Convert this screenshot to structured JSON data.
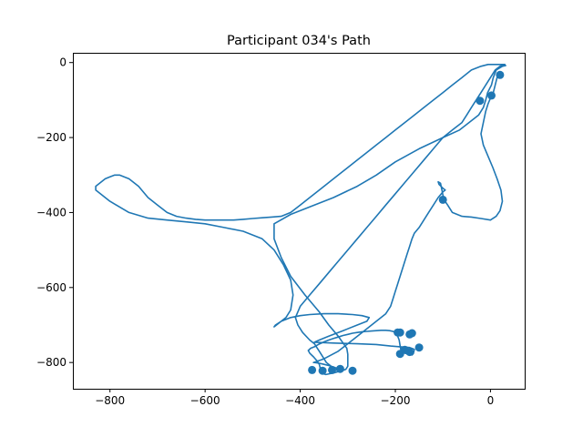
{
  "chart_data": {
    "type": "scatter",
    "title": "Participant 034's Path",
    "xlabel": "",
    "ylabel": "",
    "xlim": [
      -878,
      72
    ],
    "ylim": [
      -870,
      26
    ],
    "grid": false,
    "x_ticks": [
      -800,
      -600,
      -400,
      -200,
      0
    ],
    "y_ticks": [
      0,
      -200,
      -400,
      -600,
      -800
    ],
    "x_tick_labels": [
      "−800",
      "−600",
      "−400",
      "−200",
      "0"
    ],
    "y_tick_labels": [
      "0",
      "−200",
      "−400",
      "−600",
      "−800"
    ],
    "color": "#1f77b4",
    "series": [
      {
        "type": "line",
        "x": [
          32,
          25,
          12,
          6,
          2,
          -6,
          -10,
          -15,
          -25,
          -45,
          -65,
          -100,
          -150,
          -200,
          -240,
          -280,
          -330,
          -380,
          -420,
          -455,
          -455,
          -440,
          -420,
          -390,
          -360,
          -340,
          -320,
          -310,
          -302,
          -300,
          -300,
          -300,
          -304,
          -312,
          -322,
          -330,
          -338,
          -346,
          -352,
          -356,
          -358,
          -360,
          -365,
          -372,
          -380,
          -383,
          -378,
          -370,
          -362,
          -350,
          -340,
          -330,
          -320,
          -310,
          -300,
          -290,
          -280,
          -270,
          -260,
          -250,
          -240,
          -230,
          -220,
          -212,
          -205,
          -200,
          -198,
          -195,
          -192,
          -190,
          -188
        ],
        "y": [
          -8,
          -10,
          -20,
          -40,
          -60,
          -80,
          -100,
          -120,
          -140,
          -160,
          -180,
          -200,
          -230,
          -265,
          -300,
          -330,
          -360,
          -385,
          -405,
          -430,
          -470,
          -520,
          -570,
          -620,
          -665,
          -700,
          -730,
          -748,
          -762,
          -778,
          -795,
          -810,
          -818,
          -822,
          -825,
          -828,
          -830,
          -832,
          -830,
          -824,
          -815,
          -805,
          -795,
          -785,
          -775,
          -768,
          -762,
          -758,
          -752,
          -745,
          -740,
          -736,
          -732,
          -728,
          -725,
          -722,
          -720,
          -718,
          -717,
          -716,
          -715,
          -714,
          -714,
          -715,
          -717,
          -720,
          -724,
          -730,
          -740,
          -755,
          -770
        ]
      },
      {
        "type": "line",
        "x": [
          -188,
          -180,
          -172,
          -165,
          -162,
          -160,
          -170,
          -190,
          -210,
          -240,
          -280,
          -330,
          -370
        ],
        "y": [
          -770,
          -775,
          -778,
          -780,
          -776,
          -765,
          -760,
          -758,
          -756,
          -752,
          -750,
          -748,
          -746
        ]
      },
      {
        "type": "line",
        "x": [
          -370,
          -360,
          -340,
          -310,
          -280,
          -260,
          -255,
          -270,
          -290,
          -320,
          -350,
          -380,
          -400,
          -420,
          -440,
          -450,
          -455,
          -452,
          -440,
          -430,
          -420,
          -415,
          -420,
          -435,
          -455,
          -480,
          -520,
          -560,
          -600,
          -640,
          -680,
          -720,
          -760,
          -800,
          -830,
          -830,
          -820,
          -810,
          -800,
          -790,
          -780,
          -760,
          -740,
          -720,
          -700,
          -680,
          -660,
          -640,
          -620,
          -600,
          -580,
          -560,
          -540,
          -520,
          -500,
          -480,
          -460,
          -440,
          -420,
          -400,
          -380,
          -360,
          -340,
          -320,
          -300,
          -280,
          -260,
          -240,
          -220,
          -200,
          -180,
          -160,
          -140,
          -120,
          -100,
          -80,
          -60,
          -40,
          -20,
          -5,
          10,
          20,
          25,
          30
        ],
        "y": [
          -746,
          -740,
          -730,
          -715,
          -700,
          -690,
          -680,
          -675,
          -672,
          -670,
          -670,
          -672,
          -675,
          -680,
          -690,
          -700,
          -705,
          -700,
          -690,
          -680,
          -660,
          -620,
          -580,
          -540,
          -500,
          -470,
          -450,
          -440,
          -430,
          -425,
          -420,
          -415,
          -400,
          -370,
          -340,
          -330,
          -320,
          -310,
          -305,
          -300,
          -300,
          -310,
          -330,
          -360,
          -380,
          -400,
          -410,
          -415,
          -418,
          -420,
          -420,
          -420,
          -420,
          -418,
          -416,
          -414,
          -412,
          -410,
          -400,
          -380,
          -360,
          -340,
          -320,
          -300,
          -280,
          -260,
          -240,
          -220,
          -200,
          -180,
          -160,
          -140,
          -120,
          -100,
          -80,
          -60,
          -40,
          -20,
          -10,
          -5,
          -5,
          -5,
          -5,
          -5
        ]
      },
      {
        "type": "line",
        "x": [
          30,
          20,
          10,
          0,
          -10,
          -20,
          -30,
          -40,
          -50,
          -60,
          -80,
          -100,
          -120,
          -140,
          -160,
          -180,
          -200,
          -220,
          -240,
          -260,
          -280,
          -300,
          -320,
          -340,
          -360,
          -380,
          -400,
          -410,
          -405,
          -395,
          -380,
          -370,
          -365,
          -360,
          -355,
          -350,
          -345,
          -340,
          -335,
          -330,
          -325,
          -320,
          -318,
          -322,
          -330,
          -340,
          -350,
          -360,
          -370,
          -372
        ],
        "y": [
          -5,
          -10,
          -20,
          -40,
          -60,
          -80,
          -100,
          -120,
          -140,
          -160,
          -180,
          -200,
          -230,
          -260,
          -290,
          -320,
          -350,
          -380,
          -410,
          -440,
          -470,
          -500,
          -530,
          -560,
          -590,
          -620,
          -650,
          -680,
          -700,
          -720,
          -740,
          -750,
          -760,
          -770,
          -780,
          -790,
          -800,
          -805,
          -810,
          -815,
          -820,
          -822,
          -820,
          -816,
          -812,
          -808,
          -805,
          -802,
          -800,
          -800
        ]
      },
      {
        "type": "line",
        "x": [
          -372,
          -350,
          -320,
          -290,
          -260,
          -240,
          -220,
          -210,
          -205,
          -200,
          -195,
          -190,
          -185,
          -180,
          -175,
          -170,
          -165,
          -160,
          -150,
          -140,
          -130,
          -120,
          -110,
          -100,
          -95,
          -100,
          -108,
          -110,
          -105,
          -98
        ],
        "y": [
          -800,
          -790,
          -770,
          -740,
          -710,
          -690,
          -670,
          -650,
          -630,
          -610,
          -590,
          -570,
          -550,
          -530,
          -510,
          -490,
          -470,
          -455,
          -440,
          -420,
          -400,
          -380,
          -360,
          -345,
          -340,
          -335,
          -325,
          -318,
          -322,
          -365
        ]
      },
      {
        "type": "line",
        "x": [
          -98,
          -90,
          -80,
          -60,
          -40,
          -20,
          0,
          12,
          20,
          25,
          22,
          14,
          5,
          -5,
          -15,
          -20,
          -15,
          -10,
          -5,
          0,
          5,
          10,
          15
        ],
        "y": [
          -365,
          -380,
          -400,
          -410,
          -412,
          -416,
          -420,
          -410,
          -395,
          -370,
          -340,
          -310,
          -280,
          -250,
          -220,
          -190,
          -160,
          -130,
          -110,
          -95,
          -85,
          -60,
          -35
        ]
      }
    ],
    "markers": {
      "x": [
        20,
        2,
        -22,
        -100,
        -190,
        -165,
        -150,
        -170,
        -190,
        -180,
        -375,
        -353,
        -333,
        -316,
        -290,
        -195,
        -170
      ],
      "y": [
        -33,
        -88,
        -102,
        -366,
        -720,
        -722,
        -760,
        -772,
        -777,
        -766,
        -820,
        -822,
        -820,
        -817,
        -822,
        -720,
        -725
      ]
    }
  }
}
